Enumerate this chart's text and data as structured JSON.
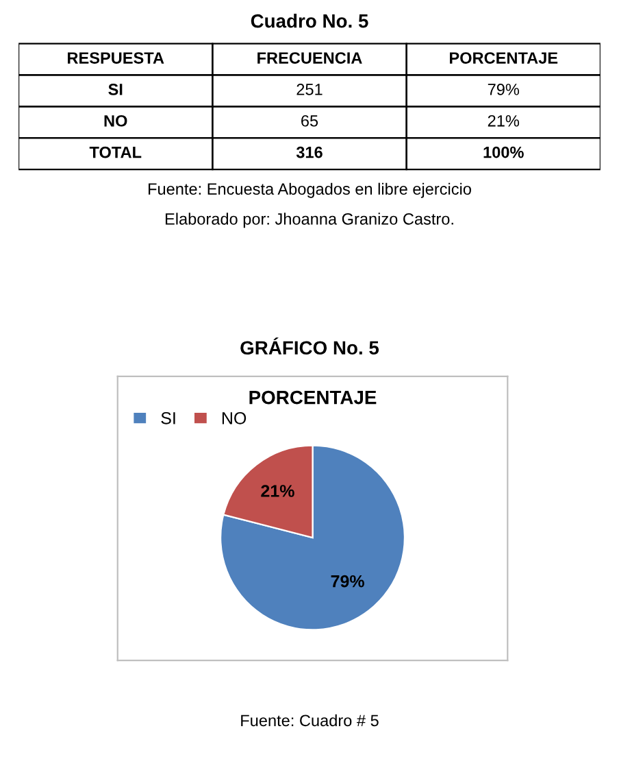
{
  "chart_data": [
    {
      "type": "other",
      "title": "Cuadro No. 5",
      "categories": [
        "RESPUESTA",
        "FRECUENCIA",
        "PORCENTAJE"
      ],
      "annotations": [
        "SI",
        "251",
        "79%",
        "NO",
        "65",
        "21%",
        "TOTAL",
        "316",
        "100%",
        "Fuente: Encuesta Abogados en libre ejercicio",
        "Elaborado por: Jhoanna Granizo Castro."
      ]
    },
    {
      "type": "pie",
      "title": "GRÁFICO No. 5",
      "subtitle": "PORCENTAJE",
      "categories": [
        "SI",
        "NO"
      ],
      "values": [
        79,
        21
      ],
      "colors": [
        "#4f81bd",
        "#c0504d"
      ],
      "value_labels": [
        "79%",
        "21%"
      ],
      "legend": "top left",
      "annotations": [
        "Fuente: Cuadro # 5"
      ]
    }
  ]
}
